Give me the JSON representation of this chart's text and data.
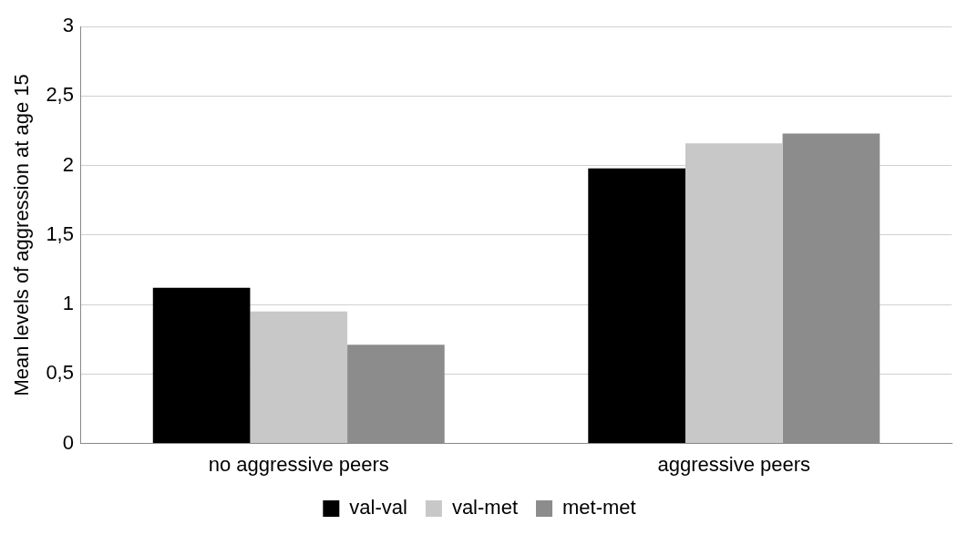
{
  "chart_data": {
    "type": "bar",
    "ylabel": "Mean levels of aggression at age 15",
    "categories": [
      "no aggressive peers",
      "aggressive peers"
    ],
    "series": [
      {
        "name": "val-val",
        "color": "#000000",
        "values": [
          1.12,
          1.98
        ]
      },
      {
        "name": "val-met",
        "color": "#c8c8c8",
        "values": [
          0.95,
          2.16
        ]
      },
      {
        "name": "met-met",
        "color": "#8c8c8c",
        "values": [
          0.71,
          2.23
        ]
      }
    ],
    "ylim": [
      0,
      3
    ],
    "yticks": [
      0,
      {
        "value": 0.5,
        "label": "0,5"
      },
      1,
      {
        "value": 1.5,
        "label": "1,5"
      },
      2,
      {
        "value": 2.5,
        "label": "2,5"
      },
      3
    ],
    "grid": "y",
    "legend": "bottom"
  }
}
